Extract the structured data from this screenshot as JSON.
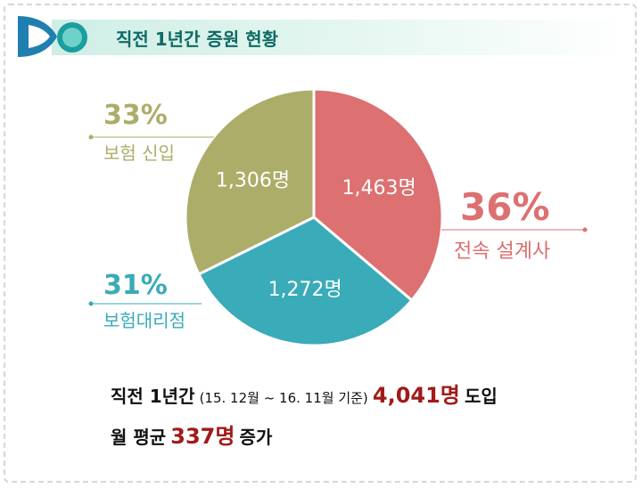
{
  "title": "직전 1년간 증원 현황",
  "colors": {
    "header_title": "#0d6a64",
    "slice_design": "#dd7070",
    "slice_agency": "#3aabb8",
    "slice_insurance": "#adad6a",
    "highlight": "#a11a1a"
  },
  "icons": {
    "logo": "circle-logo-icon"
  },
  "chart_data": {
    "type": "pie",
    "slices": [
      {
        "label": "전속 설계사",
        "value": 1463,
        "value_label": "1,463명",
        "percent": 36,
        "percent_label": "36%",
        "color": "#dd7070"
      },
      {
        "label": "보험대리점",
        "value": 1272,
        "value_label": "1,272명",
        "percent": 31,
        "percent_label": "31%",
        "color": "#3aabb8"
      },
      {
        "label": "보험 신입",
        "value": 1306,
        "value_label": "1,306명",
        "percent": 33,
        "percent_label": "33%",
        "color": "#adad6a"
      }
    ]
  },
  "summary": {
    "line1_a": "직전 1년간",
    "line1_b": "(15. 12월 ~ 16. 11월 기준)",
    "line1_value": "4,041명",
    "line1_c": "도입",
    "line2_a": "월 평균",
    "line2_value": "337명",
    "line2_b": "증가"
  }
}
